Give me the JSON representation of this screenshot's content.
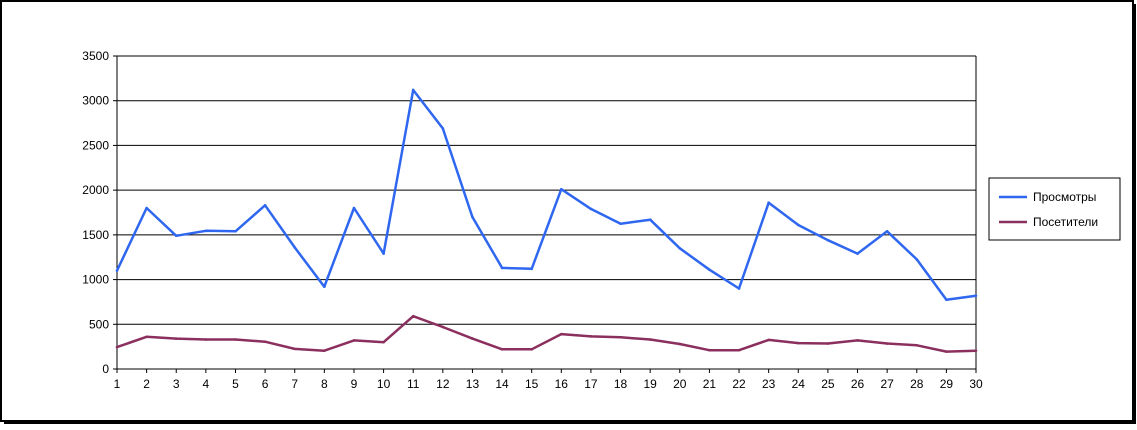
{
  "chart_data": {
    "type": "line",
    "title": "",
    "xlabel": "",
    "ylabel": "",
    "x": [
      1,
      2,
      3,
      4,
      5,
      6,
      7,
      8,
      9,
      10,
      11,
      12,
      13,
      14,
      15,
      16,
      17,
      18,
      19,
      20,
      21,
      22,
      23,
      24,
      25,
      26,
      27,
      28,
      29,
      30
    ],
    "xlim": [
      1,
      30
    ],
    "ylim": [
      0,
      3500
    ],
    "yticks": [
      0,
      500,
      1000,
      1500,
      2000,
      2500,
      3000,
      3500
    ],
    "grid": "horizontal",
    "legend_position": "right",
    "series": [
      {
        "name": "Просмотры",
        "color": "#2f67f0",
        "values": [
          1100,
          1800,
          1490,
          1545,
          1540,
          1830,
          1360,
          920,
          1800,
          1290,
          3120,
          2690,
          1700,
          1130,
          1120,
          2010,
          1790,
          1625,
          1670,
          1350,
          1110,
          900,
          1860,
          1610,
          1440,
          1290,
          1540,
          1225,
          775,
          820
        ]
      },
      {
        "name": "Посетители",
        "color": "#8b2f5e",
        "values": [
          245,
          360,
          340,
          330,
          330,
          305,
          225,
          205,
          320,
          300,
          590,
          470,
          340,
          220,
          220,
          390,
          365,
          355,
          330,
          280,
          210,
          210,
          325,
          290,
          285,
          320,
          285,
          265,
          195,
          205
        ]
      }
    ]
  }
}
